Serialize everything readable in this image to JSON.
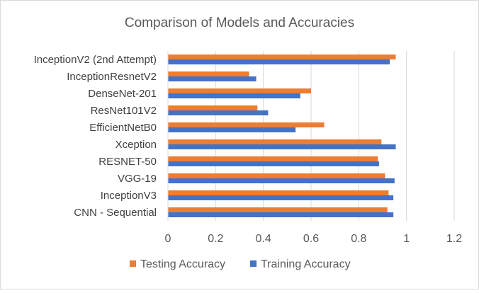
{
  "chart_data": {
    "type": "bar",
    "orientation": "horizontal",
    "title": "Comparison of Models and Accuracies",
    "categories": [
      "CNN - Sequential",
      "InceptionV3",
      "VGG-19",
      "RESNET-50",
      "Xception",
      "EfficientNetB0",
      "ResNet101V2",
      "DenseNet-201",
      "InceptionResnetV2",
      "InceptionV2 (2nd Attempt)"
    ],
    "series": [
      {
        "name": "Testing Accuracy",
        "color": "#ED7D31",
        "values": [
          0.92,
          0.925,
          0.91,
          0.88,
          0.895,
          0.655,
          0.375,
          0.6,
          0.34,
          0.955
        ]
      },
      {
        "name": "Training Accuracy",
        "color": "#4472C4",
        "values": [
          0.945,
          0.945,
          0.95,
          0.885,
          0.955,
          0.535,
          0.42,
          0.555,
          0.37,
          0.93
        ]
      }
    ],
    "xticks": [
      "0",
      "0.2",
      "0.4",
      "0.6",
      "0.8",
      "1",
      "1.2"
    ],
    "xlim": [
      0,
      1.2
    ],
    "grid": true,
    "legend_position": "bottom"
  }
}
